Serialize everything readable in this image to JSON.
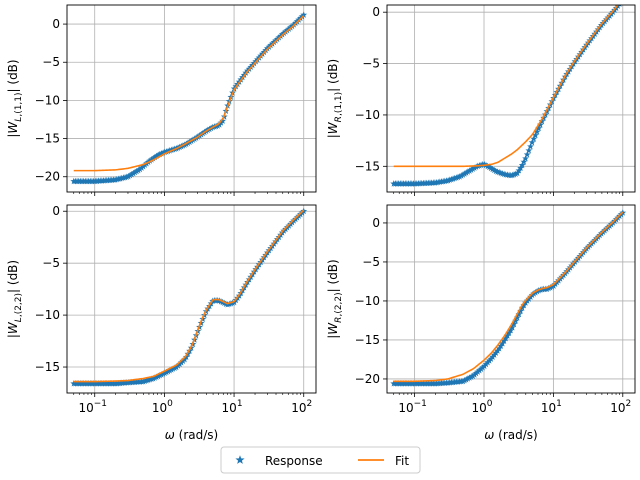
{
  "chart_data": [
    {
      "type": "line",
      "panel": "top-left",
      "ylabel": "|W_{L,(1,1)}| (dB)",
      "xlabel": "",
      "xscale": "log",
      "xlim": [
        0.04,
        150
      ],
      "ylim": [
        -22,
        2.5
      ],
      "xticks": [],
      "yticks": [
        0,
        -5,
        -10,
        -15,
        -20
      ],
      "grid": true,
      "series": [
        {
          "name": "Response",
          "marker": "star",
          "color": "#1f77b4",
          "x": [
            0.05,
            0.1,
            0.2,
            0.3,
            0.45,
            0.6,
            0.8,
            1.0,
            1.5,
            2,
            3,
            4,
            5,
            6,
            7,
            8,
            10,
            15,
            20,
            30,
            50,
            70,
            100
          ],
          "y": [
            -20.6,
            -20.6,
            -20.4,
            -20.0,
            -19.0,
            -18.0,
            -17.2,
            -16.8,
            -16.3,
            -15.8,
            -14.8,
            -14.0,
            -13.5,
            -13.3,
            -12.6,
            -10.8,
            -8.5,
            -6.3,
            -5.0,
            -3.2,
            -1.3,
            -0.2,
            1.2
          ]
        },
        {
          "name": "Fit",
          "marker": "line",
          "color": "#ff7f0e",
          "x": [
            0.05,
            0.1,
            0.2,
            0.3,
            0.5,
            0.7,
            1.0,
            1.5,
            2,
            3,
            4,
            5,
            6,
            7,
            8,
            10,
            15,
            20,
            30,
            50,
            70,
            100
          ],
          "y": [
            -19.2,
            -19.2,
            -19.1,
            -18.9,
            -18.4,
            -17.8,
            -17.0,
            -16.3,
            -15.7,
            -14.8,
            -14.0,
            -13.5,
            -13.1,
            -12.3,
            -10.9,
            -8.6,
            -6.4,
            -5.1,
            -3.3,
            -1.4,
            -0.3,
            1.1
          ]
        }
      ]
    },
    {
      "type": "line",
      "panel": "top-right",
      "ylabel": "|W_{R,(1,1)}| (dB)",
      "xlabel": "",
      "xscale": "log",
      "xlim": [
        0.04,
        150
      ],
      "ylim": [
        -17.5,
        0.7
      ],
      "xticks": [],
      "yticks": [
        0,
        -5,
        -10,
        -15
      ],
      "grid": true,
      "series": [
        {
          "name": "Response",
          "marker": "star",
          "color": "#1f77b4",
          "x": [
            0.05,
            0.1,
            0.2,
            0.3,
            0.45,
            0.6,
            0.8,
            1.0,
            1.2,
            1.5,
            2,
            2.5,
            3,
            3.5,
            4,
            5,
            7,
            10,
            15,
            20,
            30,
            50,
            70,
            100
          ],
          "y": [
            -16.7,
            -16.7,
            -16.6,
            -16.4,
            -16.0,
            -15.5,
            -15.0,
            -14.8,
            -15.1,
            -15.5,
            -15.8,
            -15.9,
            -15.7,
            -15.0,
            -14.2,
            -12.6,
            -10.5,
            -8.4,
            -6.2,
            -4.9,
            -3.2,
            -1.2,
            -0.1,
            1.2
          ]
        },
        {
          "name": "Fit",
          "marker": "line",
          "color": "#ff7f0e",
          "x": [
            0.05,
            0.1,
            0.3,
            0.5,
            0.8,
            1.0,
            1.3,
            1.6,
            2,
            2.5,
            3,
            4,
            5,
            7,
            10,
            15,
            20,
            30,
            50,
            70,
            100
          ],
          "y": [
            -15.0,
            -15.0,
            -15.0,
            -15.0,
            -14.95,
            -14.9,
            -14.8,
            -14.6,
            -14.2,
            -13.8,
            -13.4,
            -12.6,
            -11.9,
            -10.3,
            -8.3,
            -6.1,
            -4.8,
            -3.1,
            -1.1,
            0.0,
            1.3
          ]
        }
      ]
    },
    {
      "type": "line",
      "panel": "bottom-left",
      "ylabel": "|W_{L,(2,2)}| (dB)",
      "xlabel": "ω (rad/s)",
      "xscale": "log",
      "xlim": [
        0.04,
        150
      ],
      "ylim": [
        -17.5,
        0.6
      ],
      "xticks": [
        "10^-1",
        "10^0",
        "10^1",
        "10^2"
      ],
      "yticks": [
        0,
        -5,
        -10,
        -15
      ],
      "grid": true,
      "series": [
        {
          "name": "Response",
          "marker": "star",
          "color": "#1f77b4",
          "x": [
            0.05,
            0.1,
            0.2,
            0.3,
            0.5,
            0.7,
            1.0,
            1.5,
            2,
            2.5,
            3,
            3.5,
            4,
            5,
            6,
            7,
            8,
            10,
            12,
            15,
            20,
            30,
            50,
            70,
            100
          ],
          "y": [
            -16.6,
            -16.6,
            -16.6,
            -16.5,
            -16.4,
            -16.1,
            -15.6,
            -15.0,
            -14.2,
            -13.0,
            -11.6,
            -10.5,
            -9.6,
            -8.6,
            -8.6,
            -8.8,
            -9.0,
            -8.8,
            -8.1,
            -7.0,
            -5.7,
            -4.0,
            -2.0,
            -1.0,
            0.0
          ]
        },
        {
          "name": "Fit",
          "marker": "line",
          "color": "#ff7f0e",
          "x": [
            0.05,
            0.1,
            0.2,
            0.3,
            0.5,
            0.7,
            1.0,
            1.5,
            2,
            2.5,
            3,
            3.5,
            4,
            5,
            6,
            7,
            8,
            10,
            12,
            15,
            20,
            30,
            50,
            70,
            100
          ],
          "y": [
            -16.4,
            -16.4,
            -16.35,
            -16.3,
            -16.1,
            -15.9,
            -15.4,
            -14.8,
            -14.0,
            -12.9,
            -11.5,
            -10.3,
            -9.5,
            -8.5,
            -8.5,
            -8.7,
            -8.9,
            -8.7,
            -8.0,
            -6.9,
            -5.6,
            -3.9,
            -1.9,
            -0.9,
            0.1
          ]
        }
      ]
    },
    {
      "type": "line",
      "panel": "bottom-right",
      "ylabel": "|W_{R,(2,2)}| (dB)",
      "xlabel": "ω (rad/s)",
      "xscale": "log",
      "xlim": [
        0.04,
        150
      ],
      "ylim": [
        -21.8,
        2.3
      ],
      "xticks": [
        "10^-1",
        "10^0",
        "10^1",
        "10^2"
      ],
      "yticks": [
        0,
        -5,
        -10,
        -15,
        -20
      ],
      "grid": true,
      "series": [
        {
          "name": "Response",
          "marker": "star",
          "color": "#1f77b4",
          "x": [
            0.05,
            0.1,
            0.2,
            0.3,
            0.5,
            0.7,
            1.0,
            1.3,
            1.6,
            2,
            2.5,
            3,
            3.5,
            4,
            5,
            6,
            7,
            8,
            10,
            15,
            20,
            30,
            50,
            70,
            100
          ],
          "y": [
            -20.6,
            -20.6,
            -20.6,
            -20.5,
            -20.3,
            -19.6,
            -18.4,
            -17.3,
            -16.3,
            -15.0,
            -13.6,
            -12.2,
            -11.0,
            -10.2,
            -9.2,
            -8.7,
            -8.5,
            -8.5,
            -8.1,
            -6.4,
            -5.1,
            -3.3,
            -1.3,
            -0.1,
            1.3
          ]
        },
        {
          "name": "Fit",
          "marker": "line",
          "color": "#ff7f0e",
          "x": [
            0.05,
            0.1,
            0.2,
            0.3,
            0.5,
            0.7,
            1.0,
            1.3,
            1.6,
            2,
            2.5,
            3,
            3.5,
            4,
            5,
            6,
            7,
            8,
            10,
            15,
            20,
            30,
            50,
            70,
            100
          ],
          "y": [
            -20.3,
            -20.3,
            -20.2,
            -20.0,
            -19.4,
            -18.7,
            -17.6,
            -16.6,
            -15.6,
            -14.4,
            -13.0,
            -11.7,
            -10.6,
            -9.9,
            -9.0,
            -8.6,
            -8.4,
            -8.3,
            -7.9,
            -6.3,
            -5.0,
            -3.2,
            -1.2,
            0.0,
            1.4
          ]
        }
      ]
    }
  ],
  "legend": {
    "placement": "bottom-center",
    "entries": [
      {
        "label": "Response",
        "marker": "star",
        "color": "#1f77b4"
      },
      {
        "label": "Fit",
        "marker": "line",
        "color": "#ff7f0e"
      }
    ]
  }
}
